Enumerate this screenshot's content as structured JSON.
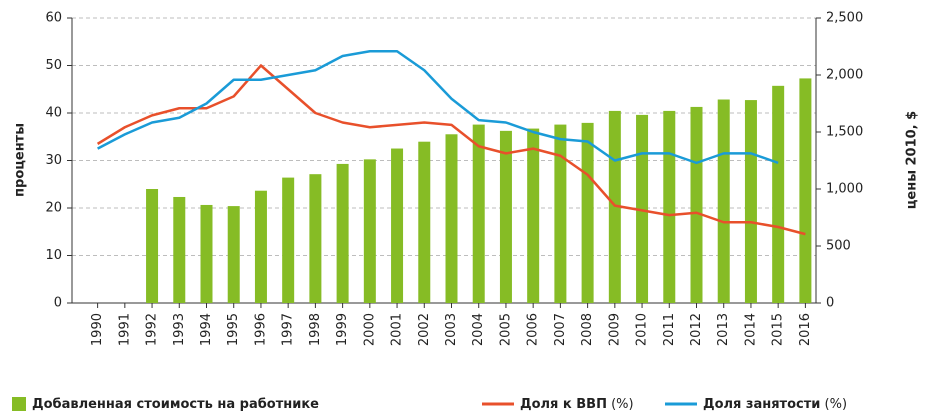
{
  "chart_data": {
    "type": "bar_line",
    "ylabel": "проценты",
    "y2label": "цены 2010, $",
    "categories": [
      "1990",
      "1991",
      "1992",
      "1993",
      "1994",
      "1995",
      "1996",
      "1997",
      "1998",
      "1999",
      "2000",
      "2001",
      "2002",
      "2003",
      "2004",
      "2005",
      "2006",
      "2007",
      "2008",
      "2009",
      "2010",
      "2011",
      "2012",
      "2013",
      "2014",
      "2015",
      "2016"
    ],
    "series": [
      {
        "name": "Добавленная стоимость на работнике",
        "type": "bar",
        "axis": "y2",
        "color": "#86bc25",
        "values": [
          null,
          null,
          1000,
          930,
          860,
          850,
          985,
          1100,
          1130,
          1220,
          1260,
          1355,
          1415,
          1480,
          1565,
          1510,
          1530,
          1565,
          1580,
          1685,
          1650,
          1685,
          1720,
          1785,
          1780,
          1905,
          1970
        ]
      },
      {
        "name": "Доля к ВВП",
        "unit": "(%)",
        "type": "line",
        "axis": "y",
        "color": "#e8502b",
        "values": [
          33.5,
          37,
          39.5,
          41,
          41,
          43.5,
          50,
          45,
          40,
          38,
          37,
          37.5,
          38,
          37.5,
          33,
          31.5,
          32.5,
          31,
          27,
          20.5,
          19.5,
          18.5,
          19,
          17,
          17,
          16,
          14.5
        ]
      },
      {
        "name": "Доля занятости",
        "unit": "(%)",
        "type": "line",
        "axis": "y",
        "color": "#1a9bd7",
        "values": [
          32.5,
          35.5,
          38,
          39,
          42,
          47,
          47,
          48,
          49,
          52,
          53,
          53,
          49,
          43,
          38.5,
          38,
          36,
          34.5,
          34,
          30,
          31.5,
          31.5,
          29.5,
          31.5,
          31.5,
          29.5,
          null
        ]
      }
    ],
    "ylim": [
      0,
      60
    ],
    "yticks": [
      0,
      10,
      20,
      30,
      40,
      50,
      60
    ],
    "y2lim": [
      0,
      2500
    ],
    "y2ticks": [
      0,
      500,
      {
        "value": 1000,
        "label": "1,000"
      },
      {
        "value": 1500,
        "label": "1,500"
      },
      {
        "value": 2000,
        "label": "2,000"
      },
      {
        "value": 2500,
        "label": "2,500"
      }
    ],
    "grid": true
  }
}
